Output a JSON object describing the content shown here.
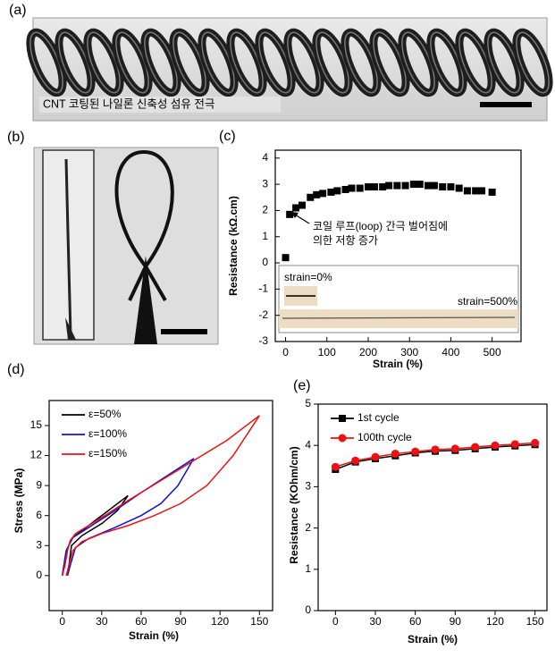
{
  "photo_panels": [
    {
      "label": "(a)",
      "caption": "CNT 코팅된 나일론 신축성 섬유 전극"
    },
    {
      "label": "(b)"
    }
  ],
  "chart_data": [
    {
      "type": "scatter",
      "panel_label": "(c)",
      "x_label": "Strain (%)",
      "y_label": "Resistance (kΩ.cm)",
      "x": [
        0,
        10,
        25,
        40,
        60,
        75,
        90,
        110,
        125,
        145,
        160,
        180,
        200,
        215,
        235,
        250,
        270,
        290,
        310,
        325,
        345,
        360,
        380,
        400,
        420,
        440,
        460,
        475,
        500
      ],
      "series": [
        {
          "name": null,
          "color": "#000000",
          "marker": "square",
          "values": [
            0.2,
            1.85,
            2.1,
            2.2,
            2.5,
            2.6,
            2.65,
            2.7,
            2.75,
            2.8,
            2.85,
            2.85,
            2.9,
            2.9,
            2.9,
            2.95,
            2.95,
            2.95,
            3.0,
            3.0,
            2.95,
            2.95,
            2.9,
            2.9,
            2.85,
            2.75,
            2.75,
            2.75,
            2.7
          ]
        }
      ],
      "xlim": [
        -25,
        570
      ],
      "xticks": [
        0,
        100,
        200,
        300,
        400,
        500
      ],
      "ylim": [
        -3,
        4.3
      ],
      "yticks": [
        -3,
        -2,
        -1,
        0,
        1,
        2,
        3,
        4
      ],
      "annotation": [
        "코일 루프(loop) 간극 벌어짐에",
        "의한 저항 증가"
      ],
      "inset_labels": [
        "strain=0%",
        "strain=500%"
      ],
      "grid": false
    },
    {
      "type": "line",
      "panel_label": "(d)",
      "x_label": "Strain (%)",
      "y_label": "Stress (MPa)",
      "legend": "upper left",
      "series": [
        {
          "name": "ε=50%",
          "color": "#000000",
          "x": [
            0,
            3,
            8,
            20,
            35,
            50,
            42,
            30,
            15,
            7,
            5,
            4
          ],
          "values": [
            0,
            2.5,
            3.8,
            5,
            6.5,
            8,
            6.5,
            5.2,
            4,
            3,
            1,
            0
          ]
        },
        {
          "name": "ε=100%",
          "color": "#1010e0",
          "x": [
            0,
            3,
            8,
            20,
            40,
            60,
            80,
            100,
            88,
            75,
            60,
            40,
            20,
            10,
            6,
            4
          ],
          "values": [
            0,
            2.5,
            3.8,
            4.8,
            6.5,
            8.3,
            10,
            11.7,
            9,
            7.2,
            6,
            4.8,
            3.7,
            2.8,
            1,
            0
          ]
        },
        {
          "name": "ε=150%",
          "color": "#ee1111",
          "x": [
            0,
            2,
            4,
            6,
            10,
            20,
            30,
            50,
            75,
            100,
            125,
            150,
            130,
            110,
            90,
            70,
            50,
            30,
            15,
            8,
            5,
            3
          ],
          "values": [
            0,
            1,
            2.5,
            3.5,
            4.2,
            5,
            5.8,
            7.5,
            9.5,
            11.5,
            13.5,
            16,
            12,
            9,
            7.2,
            6,
            5,
            4.2,
            3.4,
            2.5,
            1,
            0
          ]
        }
      ],
      "xlim": [
        -10,
        160
      ],
      "xticks": [
        0,
        30,
        60,
        90,
        120,
        150
      ],
      "ylim": [
        -3.5,
        17.5
      ],
      "yticks": [
        0,
        3,
        6,
        9,
        12,
        15
      ],
      "grid": false
    },
    {
      "type": "line",
      "panel_label": "(e)",
      "x_label": "Strain (%)",
      "y_label": "Resistance (KOhm/cm)",
      "legend": "upper left",
      "x": [
        0,
        15,
        30,
        45,
        60,
        75,
        90,
        105,
        120,
        135,
        150
      ],
      "series": [
        {
          "name": "1st cycle",
          "color": "#000000",
          "marker": "square",
          "values": [
            3.42,
            3.6,
            3.68,
            3.75,
            3.82,
            3.86,
            3.88,
            3.92,
            3.96,
            3.99,
            4.02
          ]
        },
        {
          "name": "100th cycle",
          "color": "#ee1111",
          "marker": "circle",
          "values": [
            3.48,
            3.63,
            3.72,
            3.8,
            3.85,
            3.9,
            3.92,
            3.96,
            4.0,
            4.03,
            4.06
          ]
        }
      ],
      "xlim": [
        -13,
        159
      ],
      "xticks": [
        0,
        30,
        60,
        90,
        120,
        150
      ],
      "ylim": [
        0,
        5
      ],
      "yticks": [
        0,
        1,
        2,
        3,
        4,
        5
      ],
      "grid": false
    }
  ]
}
